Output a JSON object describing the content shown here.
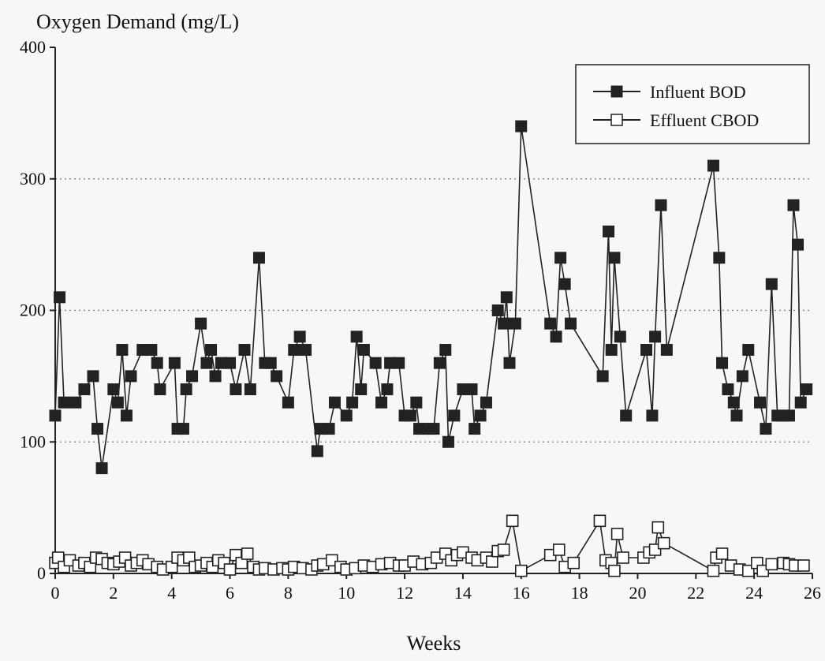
{
  "chart_data": {
    "type": "line",
    "ylabel": "Oxygen Demand (mg/L)",
    "xlabel": "Weeks",
    "xlim": [
      0,
      26
    ],
    "ylim": [
      0,
      400
    ],
    "xticks": [
      0,
      2,
      4,
      6,
      8,
      10,
      12,
      14,
      16,
      18,
      20,
      22,
      24,
      26
    ],
    "yticks": [
      0,
      100,
      200,
      300,
      400
    ],
    "grid": "dotted horizontal at 100, 200, 300",
    "legend_position": "top-right",
    "colors": {
      "line": "#222222",
      "filled_marker": "#222222",
      "hollow_marker_fill": "#ffffff",
      "grid": "#777777"
    },
    "series": [
      {
        "name": "Influent BOD",
        "marker": "filled-square",
        "points": [
          [
            0,
            120
          ],
          [
            0.15,
            210
          ],
          [
            0.3,
            130
          ],
          [
            0.7,
            130
          ],
          [
            1.0,
            140
          ],
          [
            1.3,
            150
          ],
          [
            1.45,
            110
          ],
          [
            1.6,
            80
          ],
          [
            2.0,
            140
          ],
          [
            2.15,
            130
          ],
          [
            2.3,
            170
          ],
          [
            2.45,
            120
          ],
          [
            2.6,
            150
          ],
          [
            3.0,
            170
          ],
          [
            3.3,
            170
          ],
          [
            3.5,
            160
          ],
          [
            3.6,
            140
          ],
          [
            4.1,
            160
          ],
          [
            4.2,
            110
          ],
          [
            4.4,
            110
          ],
          [
            4.5,
            140
          ],
          [
            4.7,
            150
          ],
          [
            5.0,
            190
          ],
          [
            5.2,
            160
          ],
          [
            5.35,
            170
          ],
          [
            5.5,
            150
          ],
          [
            5.7,
            160
          ],
          [
            6.0,
            160
          ],
          [
            6.2,
            140
          ],
          [
            6.5,
            170
          ],
          [
            6.7,
            140
          ],
          [
            7.0,
            240
          ],
          [
            7.2,
            160
          ],
          [
            7.4,
            160
          ],
          [
            7.6,
            150
          ],
          [
            8.0,
            130
          ],
          [
            8.2,
            170
          ],
          [
            8.4,
            180
          ],
          [
            8.6,
            170
          ],
          [
            9.0,
            93
          ],
          [
            9.1,
            110
          ],
          [
            9.4,
            110
          ],
          [
            9.6,
            130
          ],
          [
            10.0,
            120
          ],
          [
            10.2,
            130
          ],
          [
            10.35,
            180
          ],
          [
            10.5,
            140
          ],
          [
            10.6,
            170
          ],
          [
            11.0,
            160
          ],
          [
            11.2,
            130
          ],
          [
            11.4,
            140
          ],
          [
            11.5,
            160
          ],
          [
            11.8,
            160
          ],
          [
            12.0,
            120
          ],
          [
            12.2,
            120
          ],
          [
            12.4,
            130
          ],
          [
            12.5,
            110
          ],
          [
            12.8,
            110
          ],
          [
            13.0,
            110
          ],
          [
            13.2,
            160
          ],
          [
            13.4,
            170
          ],
          [
            13.5,
            100
          ],
          [
            13.7,
            120
          ],
          [
            14.0,
            140
          ],
          [
            14.3,
            140
          ],
          [
            14.4,
            110
          ],
          [
            14.6,
            120
          ],
          [
            14.8,
            130
          ],
          [
            15.2,
            200
          ],
          [
            15.4,
            190
          ],
          [
            15.5,
            210
          ],
          [
            15.6,
            160
          ],
          [
            15.8,
            190
          ],
          [
            16.0,
            340
          ],
          [
            17.0,
            190
          ],
          [
            17.2,
            180
          ],
          [
            17.35,
            240
          ],
          [
            17.5,
            220
          ],
          [
            17.7,
            190
          ],
          [
            18.8,
            150
          ],
          [
            19.0,
            260
          ],
          [
            19.1,
            170
          ],
          [
            19.2,
            240
          ],
          [
            19.4,
            180
          ],
          [
            19.6,
            120
          ],
          [
            20.3,
            170
          ],
          [
            20.5,
            120
          ],
          [
            20.6,
            180
          ],
          [
            20.8,
            280
          ],
          [
            21.0,
            170
          ],
          [
            22.6,
            310
          ],
          [
            22.8,
            240
          ],
          [
            22.9,
            160
          ],
          [
            23.1,
            140
          ],
          [
            23.3,
            130
          ],
          [
            23.4,
            120
          ],
          [
            23.6,
            150
          ],
          [
            23.8,
            170
          ],
          [
            24.2,
            130
          ],
          [
            24.4,
            110
          ],
          [
            24.6,
            220
          ],
          [
            24.8,
            120
          ],
          [
            25.0,
            120
          ],
          [
            25.2,
            120
          ],
          [
            25.35,
            280
          ],
          [
            25.5,
            250
          ],
          [
            25.6,
            130
          ],
          [
            25.8,
            140
          ]
        ]
      },
      {
        "name": "Effluent CBOD",
        "marker": "hollow-square",
        "points": [
          [
            0,
            8
          ],
          [
            0.1,
            12
          ],
          [
            0.3,
            5
          ],
          [
            0.5,
            10
          ],
          [
            0.8,
            6
          ],
          [
            1.0,
            8
          ],
          [
            1.2,
            5
          ],
          [
            1.4,
            12
          ],
          [
            1.6,
            11
          ],
          [
            1.8,
            8
          ],
          [
            2.0,
            7
          ],
          [
            2.2,
            9
          ],
          [
            2.4,
            12
          ],
          [
            2.6,
            6
          ],
          [
            2.8,
            8
          ],
          [
            3.0,
            10
          ],
          [
            3.2,
            7
          ],
          [
            3.5,
            5
          ],
          [
            3.7,
            3
          ],
          [
            4.0,
            5
          ],
          [
            4.2,
            12
          ],
          [
            4.4,
            10
          ],
          [
            4.6,
            12
          ],
          [
            4.8,
            5
          ],
          [
            5.0,
            6
          ],
          [
            5.2,
            8
          ],
          [
            5.4,
            5
          ],
          [
            5.6,
            10
          ],
          [
            5.8,
            8
          ],
          [
            6.0,
            3
          ],
          [
            6.2,
            14
          ],
          [
            6.4,
            8
          ],
          [
            6.6,
            15
          ],
          [
            6.8,
            5
          ],
          [
            7.0,
            3
          ],
          [
            7.2,
            4
          ],
          [
            7.5,
            3
          ],
          [
            7.8,
            4
          ],
          [
            8.0,
            3
          ],
          [
            8.2,
            5
          ],
          [
            8.5,
            4
          ],
          [
            8.8,
            3
          ],
          [
            9.0,
            6
          ],
          [
            9.2,
            7
          ],
          [
            9.5,
            10
          ],
          [
            9.8,
            5
          ],
          [
            10.0,
            3
          ],
          [
            10.3,
            4
          ],
          [
            10.6,
            6
          ],
          [
            10.9,
            5
          ],
          [
            11.2,
            7
          ],
          [
            11.5,
            8
          ],
          [
            11.8,
            6
          ],
          [
            12.0,
            6
          ],
          [
            12.3,
            9
          ],
          [
            12.6,
            7
          ],
          [
            12.9,
            8
          ],
          [
            13.1,
            12
          ],
          [
            13.4,
            15
          ],
          [
            13.6,
            10
          ],
          [
            13.8,
            14
          ],
          [
            14.0,
            16
          ],
          [
            14.3,
            12
          ],
          [
            14.5,
            10
          ],
          [
            14.8,
            12
          ],
          [
            15.0,
            9
          ],
          [
            15.2,
            17
          ],
          [
            15.4,
            18
          ],
          [
            15.7,
            40
          ],
          [
            16.0,
            2
          ],
          [
            17.0,
            14
          ],
          [
            17.3,
            18
          ],
          [
            17.5,
            5
          ],
          [
            17.8,
            8
          ],
          [
            18.7,
            40
          ],
          [
            18.9,
            10
          ],
          [
            19.1,
            8
          ],
          [
            19.2,
            2
          ],
          [
            19.3,
            30
          ],
          [
            19.5,
            12
          ],
          [
            20.2,
            12
          ],
          [
            20.4,
            16
          ],
          [
            20.6,
            18
          ],
          [
            20.7,
            35
          ],
          [
            20.9,
            23
          ],
          [
            22.6,
            2
          ],
          [
            22.7,
            12
          ],
          [
            22.9,
            15
          ],
          [
            23.2,
            6
          ],
          [
            23.5,
            3
          ],
          [
            23.8,
            2
          ],
          [
            24.1,
            8
          ],
          [
            24.3,
            2
          ],
          [
            24.6,
            7
          ],
          [
            25.0,
            8
          ],
          [
            25.2,
            7
          ],
          [
            25.4,
            6
          ],
          [
            25.7,
            6
          ]
        ]
      }
    ]
  }
}
